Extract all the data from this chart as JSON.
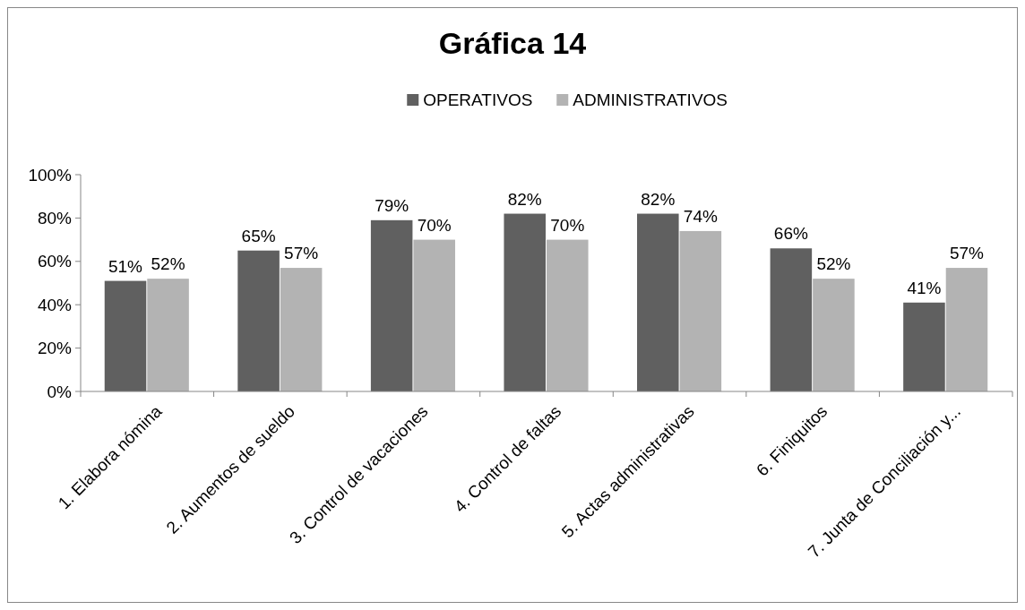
{
  "chart_data": {
    "type": "bar",
    "title": "Gráfica 14",
    "categories": [
      "1. Elabora nómina",
      "2. Aumentos de sueldo",
      "3. Control de vacaciones",
      "4. Control de faltas",
      "5. Actas administrativas",
      "6. Finiquitos",
      "7. Junta de Conciliación y..."
    ],
    "series": [
      {
        "name": "OPERATIVOS",
        "color": "#606060",
        "values": [
          51,
          65,
          79,
          82,
          82,
          66,
          41
        ],
        "value_labels": [
          "51%",
          "65%",
          "79%",
          "82%",
          "82%",
          "66%",
          "41%"
        ]
      },
      {
        "name": "ADMINISTRATIVOS",
        "color": "#b3b3b3",
        "values": [
          52,
          57,
          70,
          70,
          74,
          52,
          57
        ],
        "value_labels": [
          "52%",
          "57%",
          "70%",
          "70%",
          "74%",
          "52%",
          "57%"
        ]
      }
    ],
    "ylim": [
      0,
      100
    ],
    "yticks": [
      {
        "value": 0,
        "label": "0%"
      },
      {
        "value": 20,
        "label": "20%"
      },
      {
        "value": 40,
        "label": "40%"
      },
      {
        "value": 60,
        "label": "60%"
      },
      {
        "value": 80,
        "label": "80%"
      },
      {
        "value": 100,
        "label": "100%"
      }
    ],
    "grid": false,
    "legend": "top"
  }
}
